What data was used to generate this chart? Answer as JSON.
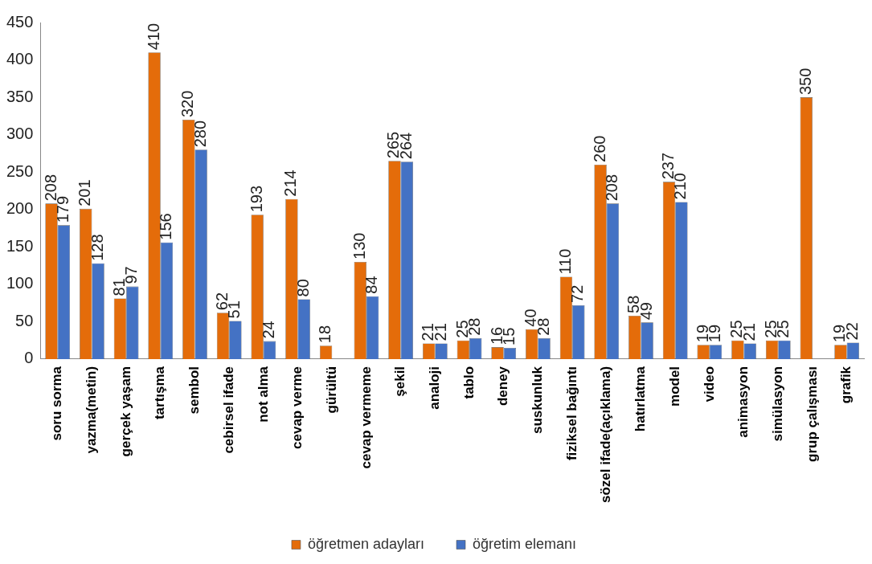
{
  "chart_data": {
    "type": "bar",
    "categories": [
      "soru sorma",
      "yazma(metin)",
      "gerçek yaşam",
      "tartışma",
      "sembol",
      "cebirsel ifade",
      "not alma",
      "cevap verme",
      "gürültü",
      "cevap vermeme",
      "şekil",
      "analoji",
      "tablo",
      "deney",
      "suskunluk",
      "fiziksel bağıntı",
      "sözel ifade(açıklama)",
      "hatırlatma",
      "model",
      "video",
      "animasyon",
      "simülasyon",
      "grup çalışması",
      "grafik"
    ],
    "series": [
      {
        "name": "öğretmen adayları",
        "color": "#e46c0a",
        "values": [
          208,
          201,
          81,
          410,
          320,
          62,
          193,
          214,
          18,
          130,
          265,
          21,
          25,
          16,
          40,
          110,
          260,
          58,
          237,
          19,
          25,
          25,
          350,
          19
        ]
      },
      {
        "name": "öğretim elemanı",
        "color": "#4472c4",
        "values": [
          179,
          128,
          97,
          156,
          280,
          51,
          24,
          80,
          null,
          84,
          264,
          21,
          28,
          15,
          28,
          72,
          208,
          49,
          210,
          19,
          21,
          25,
          null,
          22
        ]
      }
    ],
    "ylim": [
      0,
      450
    ],
    "yticks": [
      0,
      50,
      100,
      150,
      200,
      250,
      300,
      350,
      400,
      450
    ],
    "grid": false,
    "legend": "bottom",
    "data_labels": true
  }
}
